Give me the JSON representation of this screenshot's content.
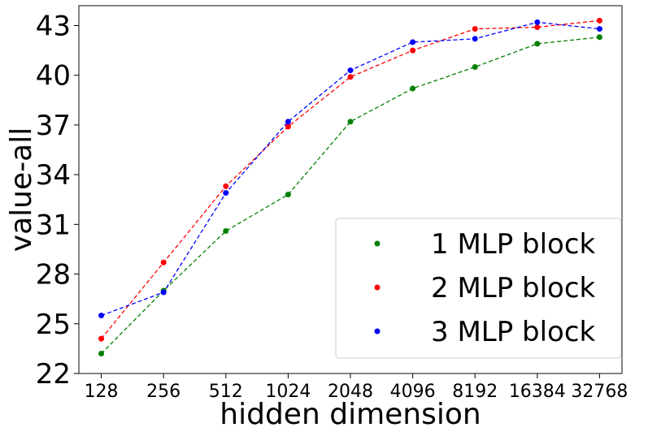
{
  "chart_data": {
    "type": "line",
    "x": [
      128,
      256,
      512,
      1024,
      2048,
      4096,
      8192,
      16384,
      32768
    ],
    "x_tick_labels": [
      "128",
      "256",
      "512",
      "1024",
      "2048",
      "4096",
      "8192",
      "16384",
      "32768"
    ],
    "x_scale": "log2",
    "series": [
      {
        "name": "1 MLP block",
        "color": "#008000",
        "values": [
          23.2,
          27.0,
          30.6,
          32.8,
          37.2,
          39.2,
          40.5,
          41.9,
          42.3
        ]
      },
      {
        "name": "2 MLP block",
        "color": "#ff0000",
        "values": [
          24.1,
          28.7,
          33.3,
          36.9,
          39.9,
          41.5,
          42.8,
          42.9,
          43.3
        ]
      },
      {
        "name": "3 MLP block",
        "color": "#0000ff",
        "values": [
          25.5,
          26.9,
          32.9,
          37.2,
          40.3,
          42.0,
          42.2,
          43.2,
          42.8
        ]
      }
    ],
    "y_ticks": [
      22,
      25,
      28,
      31,
      34,
      37,
      40,
      43
    ],
    "y_tick_labels": [
      "22",
      "25",
      "28",
      "31",
      "34",
      "37",
      "40",
      "43"
    ],
    "xlabel": "hidden dimension",
    "ylabel": "value-all",
    "ylim": [
      22,
      44.2
    ],
    "line_style": "dashed",
    "markers": "dot",
    "grid": false,
    "legend_position": "lower-right"
  }
}
